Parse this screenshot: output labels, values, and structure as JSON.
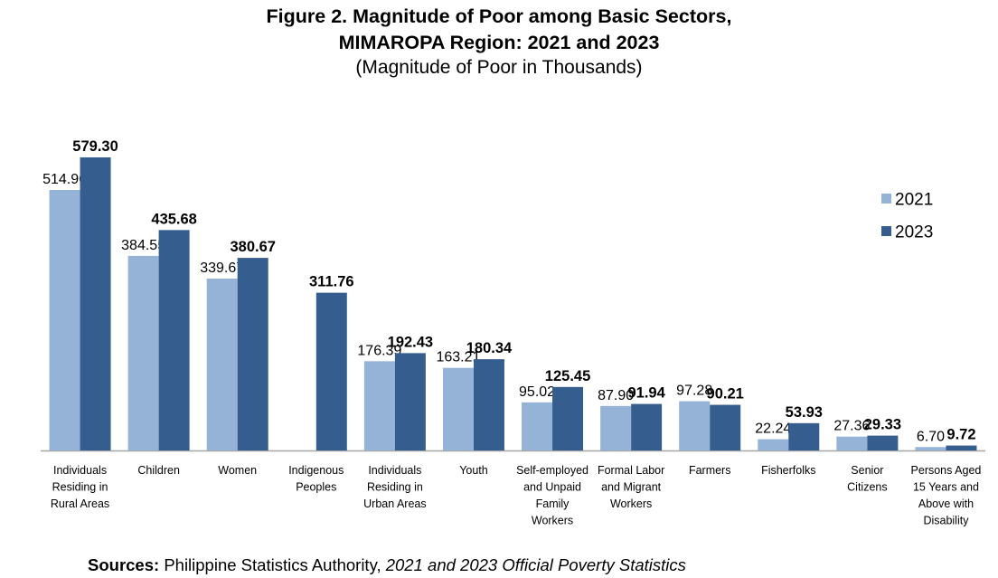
{
  "title_line1": "Figure 2. Magnitude of Poor among Basic Sectors,",
  "title_line2": "MIMAROPA Region: 2021 and 2023",
  "subtitle": "(Magnitude of Poor in Thousands)",
  "source": {
    "label": "Sources:",
    "agency": "Philippine Statistics Authority,",
    "publication": "2021 and 2023 Official Poverty Statistics"
  },
  "colors": {
    "series_2021": "#95b3d7",
    "series_2023": "#355e8f",
    "axis": "#a6a6a6"
  },
  "chart_data": {
    "type": "bar",
    "legend_position": "right",
    "grid": false,
    "ylim": [
      0,
      600
    ],
    "categories": [
      "Individuals Residing in Rural Areas",
      "Children",
      "Women",
      "Indigenous Peoples",
      "Individuals Residing in Urban Areas",
      "Youth",
      "Self-employed and Unpaid Family Workers",
      "Formal Labor and Migrant Workers",
      "Farmers",
      "Fisherfolks",
      "Senior Citizens",
      "Persons Aged 15 Years and Above with Disability"
    ],
    "category_label_lines": [
      [
        "Individuals",
        "Residing in",
        "Rural Areas"
      ],
      [
        "Children"
      ],
      [
        "Women"
      ],
      [
        "Indigenous",
        "Peoples"
      ],
      [
        "Individuals",
        "Residing in",
        "Urban Areas"
      ],
      [
        "Youth"
      ],
      [
        "Self-employed",
        "and Unpaid",
        "Family",
        "Workers"
      ],
      [
        "Formal Labor",
        "and Migrant",
        "Workers"
      ],
      [
        "Farmers"
      ],
      [
        "Fisherfolks"
      ],
      [
        "Senior",
        "Citizens"
      ],
      [
        "Persons Aged",
        "15 Years and",
        "Above with",
        "Disability"
      ]
    ],
    "series": [
      {
        "name": "2021",
        "values": [
          514.96,
          384.55,
          339.67,
          null,
          176.39,
          163.21,
          95.02,
          87.9,
          97.28,
          22.24,
          27.36,
          6.7
        ],
        "labels": [
          "514.96",
          "384.55",
          "339.67",
          "",
          "176.39",
          "163.21",
          "95.02",
          "87.90",
          "97.28",
          "22.24",
          "27.36",
          "6.70"
        ]
      },
      {
        "name": "2023",
        "values": [
          579.3,
          435.68,
          380.67,
          311.76,
          192.43,
          180.34,
          125.45,
          91.94,
          90.21,
          53.93,
          29.33,
          9.72
        ],
        "labels": [
          "579.30",
          "435.68",
          "380.67",
          "311.76",
          "192.43",
          "180.34",
          "125.45",
          "91.94",
          "90.21",
          "53.93",
          "29.33",
          "9.72"
        ]
      }
    ]
  }
}
